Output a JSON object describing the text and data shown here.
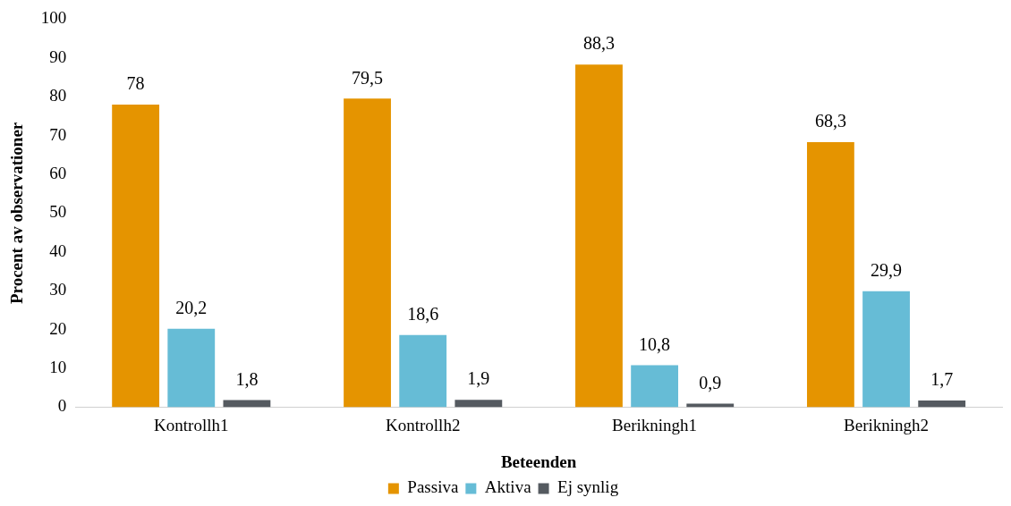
{
  "chart_data": {
    "type": "bar",
    "xlabel": "Beteenden",
    "ylabel": "Procent av observationer",
    "categories": [
      "Kontrollh1",
      "Kontrollh2",
      "Berikningh1",
      "Berikningh2"
    ],
    "series": [
      {
        "name": "Passiva",
        "color": "#e59400",
        "values": [
          78,
          79.5,
          88.3,
          68.3
        ],
        "value_labels": [
          "78",
          "79,5",
          "88,3",
          "68,3"
        ]
      },
      {
        "name": "Aktiva",
        "color": "#66bcd6",
        "values": [
          20.2,
          18.6,
          10.8,
          29.9
        ],
        "value_labels": [
          "20,2",
          "18,6",
          "10,8",
          "29,9"
        ]
      },
      {
        "name": "Ej synlig",
        "color": "#555a60",
        "values": [
          1.8,
          1.9,
          0.9,
          1.7
        ],
        "value_labels": [
          "1,8",
          "1,9",
          "0,9",
          "1,7"
        ]
      }
    ],
    "ylim": [
      0,
      100
    ],
    "yticks": [
      0,
      10,
      20,
      30,
      40,
      50,
      60,
      70,
      80,
      90,
      100
    ],
    "grid": false,
    "legend": "bottom"
  }
}
